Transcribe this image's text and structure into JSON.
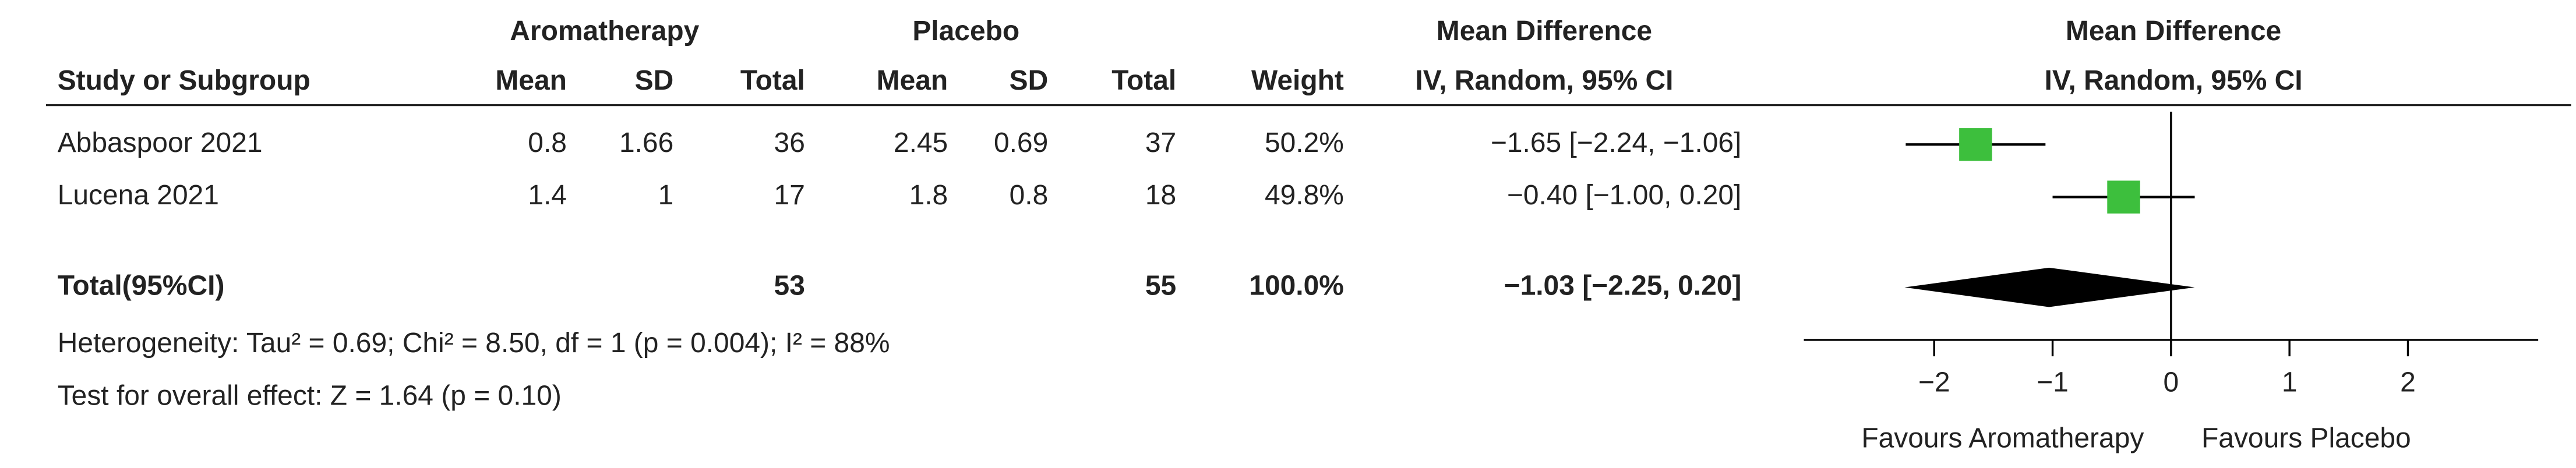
{
  "chart_data": {
    "type": "forest",
    "header": {
      "group1": "Aromatherapy",
      "group2": "Placebo",
      "effect": "Mean Difference",
      "plot_effect": "Mean Difference",
      "plot_method": "IV, Random, 95% CI"
    },
    "columns": [
      "Study or Subgroup",
      "Mean",
      "SD",
      "Total",
      "Mean",
      "SD",
      "Total",
      "Weight",
      "IV, Random, 95% CI"
    ],
    "studies": [
      {
        "name": "Abbaspoor 2021",
        "values": [
          0.8,
          1.66,
          36,
          2.45,
          0.69,
          37,
          "50.2%"
        ],
        "md": -1.65,
        "ci_low": -2.24,
        "ci_high": -1.06,
        "md_label": "−1.65 [−2.24, −1.06]"
      },
      {
        "name": "Lucena 2021",
        "values": [
          1.4,
          1,
          17,
          1.8,
          0.8,
          18,
          "49.8%"
        ],
        "md": -0.4,
        "ci_low": -1.0,
        "ci_high": 0.2,
        "md_label": "−0.40 [−1.00, 0.20]"
      }
    ],
    "total": {
      "name": "Total(95%CI)",
      "group1_total": 53,
      "group2_total": 55,
      "weight": "100.0%",
      "md": -1.03,
      "ci_low": -2.25,
      "ci_high": 0.2,
      "md_label": "−1.03 [−2.25, 0.20]"
    },
    "heterogeneity": "Heterogeneity: Tau² = 0.69; Chi² = 8.50, df = 1 (p = 0.004); I² = 88%",
    "overall_effect": "Test for overall effect: Z = 1.64 (p = 0.10)",
    "xlim": [
      -3.1,
      3.1
    ],
    "xticks": [
      {
        "value": -2,
        "label": "−2"
      },
      {
        "value": -1,
        "label": "−1"
      },
      0,
      1,
      2
    ],
    "x_label_left": "Favours Aromatherapy",
    "x_label_right": "Favours Placebo",
    "marker_color": "#3dbf3d",
    "diamond_color": "#000000"
  }
}
